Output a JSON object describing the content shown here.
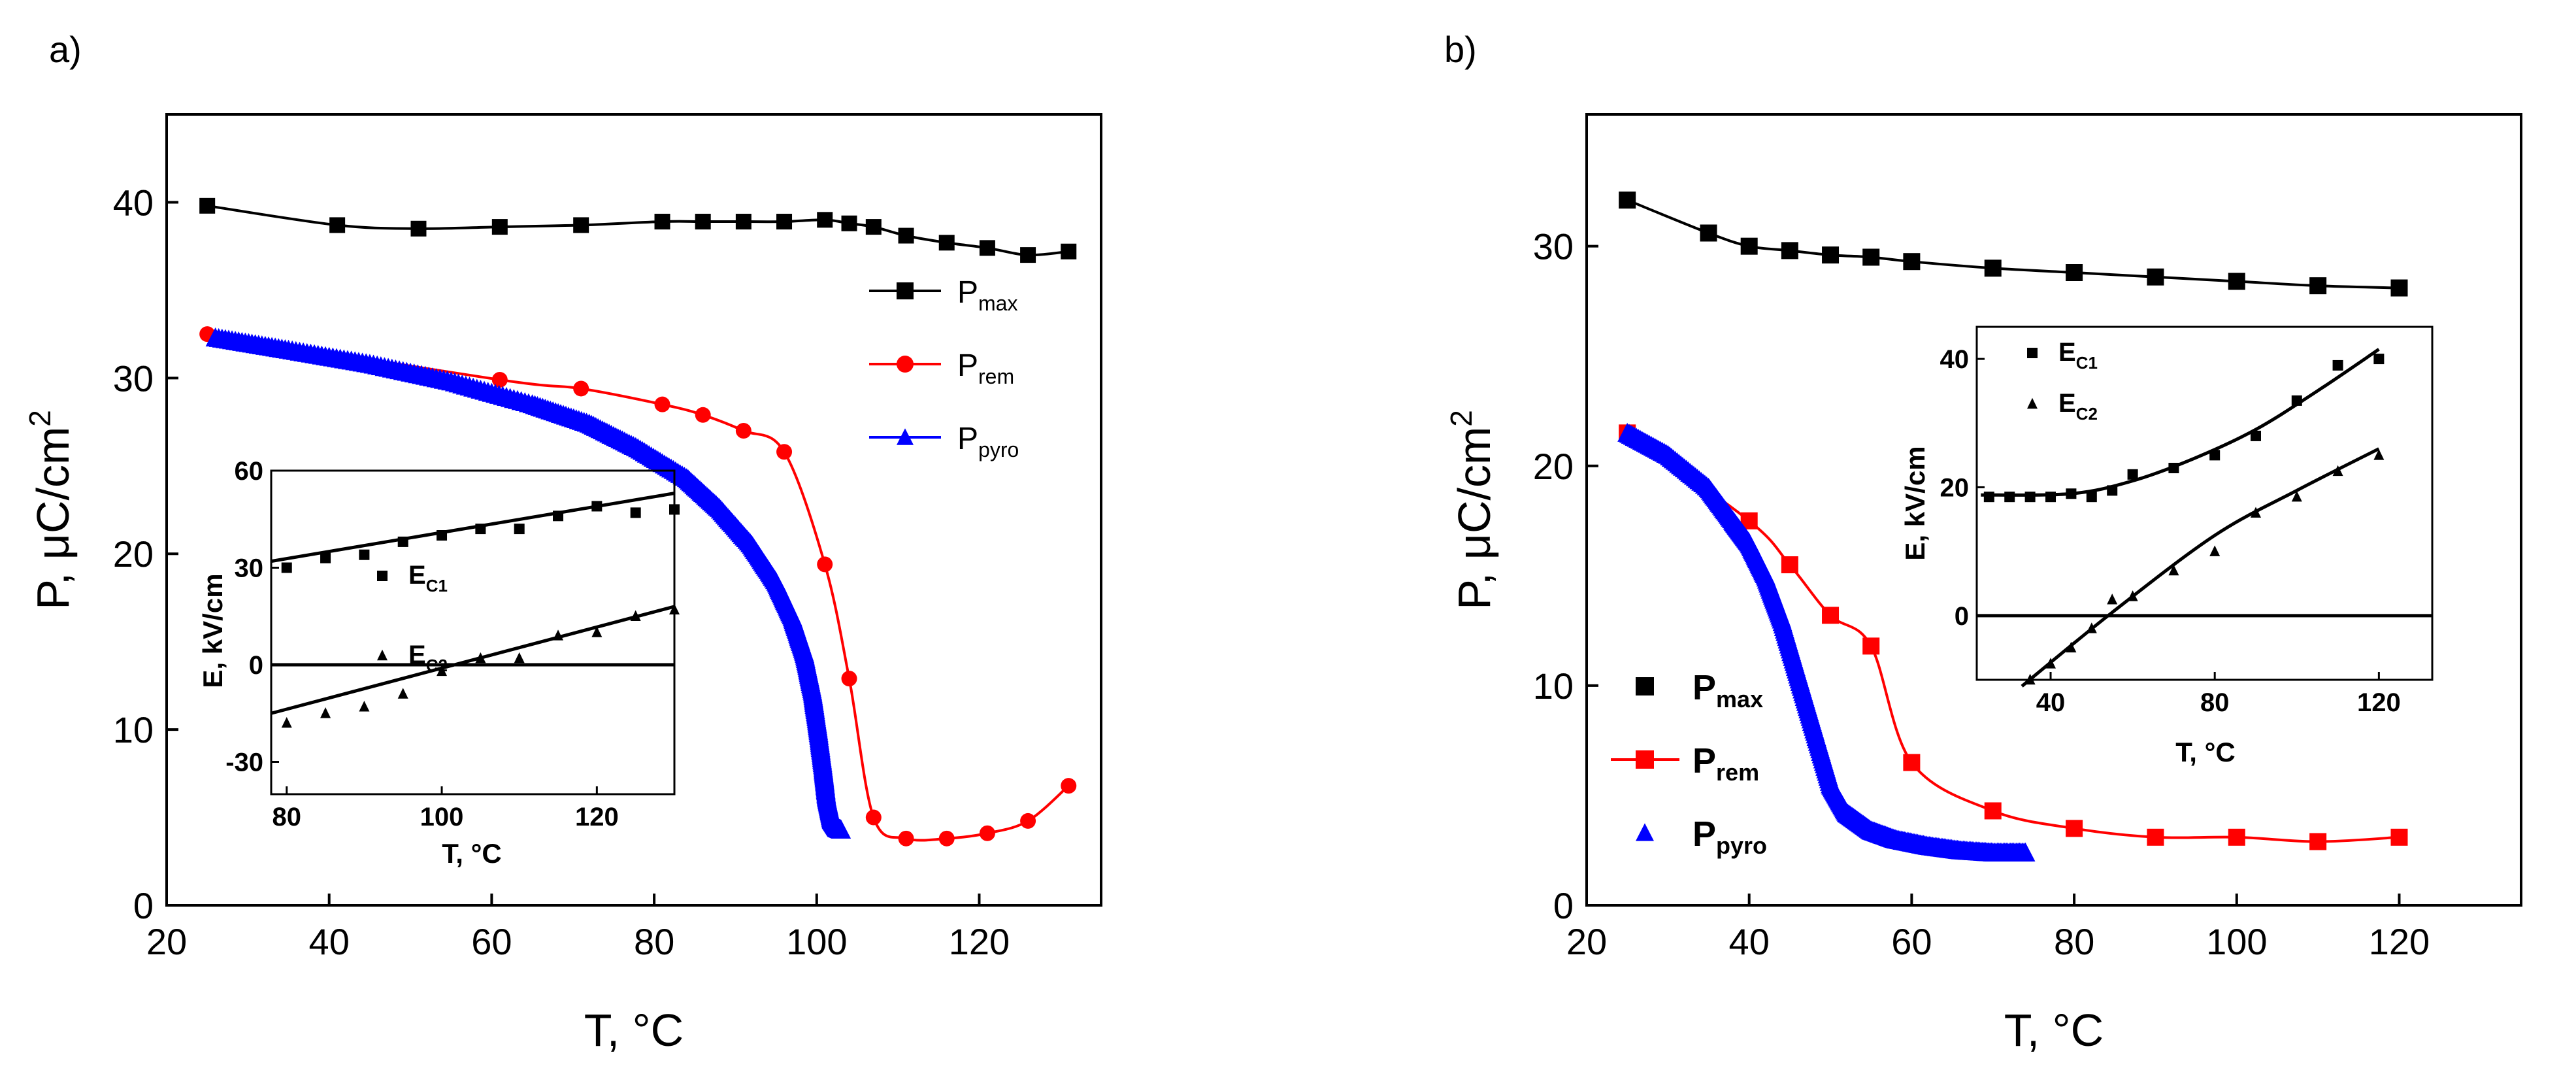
{
  "chart_data": [
    {
      "panel": "a)",
      "type": "line",
      "xlabel": "T, °C",
      "ylabel": "P, μC/cm",
      "ylabel_sup": "2",
      "xlim": [
        20,
        135
      ],
      "ylim": [
        0,
        45
      ],
      "xticks": [
        20,
        40,
        60,
        80,
        100,
        120
      ],
      "yticks": [
        0,
        10,
        20,
        30,
        40
      ],
      "legend_position": "right",
      "series": [
        {
          "name": "P",
          "sub": "max",
          "color": "#000000",
          "marker": "square",
          "line": true,
          "x": [
            25,
            41,
            51,
            61,
            71,
            81,
            86,
            91,
            96,
            101,
            104,
            107,
            111,
            116,
            121,
            126,
            131
          ],
          "y": [
            39.8,
            38.7,
            38.5,
            38.6,
            38.7,
            38.9,
            38.9,
            38.9,
            38.9,
            39.0,
            38.8,
            38.6,
            38.1,
            37.7,
            37.4,
            37.0,
            37.2
          ]
        },
        {
          "name": "P",
          "sub": "rem",
          "color": "#ff0000",
          "marker": "circle",
          "line": true,
          "x": [
            25,
            61,
            71,
            81,
            86,
            91,
            96,
            101,
            104,
            107,
            111,
            116,
            121,
            126,
            131
          ],
          "y": [
            32.5,
            29.9,
            29.4,
            28.5,
            27.9,
            27.0,
            25.8,
            19.4,
            12.9,
            5.0,
            3.8,
            3.8,
            4.1,
            4.8,
            6.8
          ]
        },
        {
          "name": "P",
          "sub": "pyro",
          "color": "#0000ff",
          "marker": "triangle",
          "line": false,
          "x": [
            26,
            35,
            45,
            55,
            65,
            72,
            78,
            84,
            88,
            92,
            95,
            97,
            98.5,
            99.5,
            100.2,
            100.8,
            101.2,
            101.8,
            102.5,
            103
          ],
          "y": [
            32.3,
            31.6,
            30.8,
            29.8,
            28.5,
            27.4,
            26.0,
            24.3,
            22.6,
            20.5,
            18.4,
            16.4,
            14.3,
            12.1,
            9.9,
            7.8,
            6.2,
            4.9,
            4.4,
            4.3
          ]
        }
      ],
      "inset": {
        "xlabel": "T, °C",
        "ylabel": "E, kV/cm",
        "xlim": [
          78,
          130
        ],
        "ylim": [
          -40,
          60
        ],
        "xticks": [
          80,
          100,
          120
        ],
        "yticks": [
          -30,
          0,
          30,
          60
        ],
        "zero_line": true,
        "series": [
          {
            "name": "E",
            "sub": "C1",
            "marker": "square",
            "x": [
              80,
              85,
              90,
              95,
              100,
              105,
              110,
              115,
              120,
              125,
              130
            ],
            "y": [
              30,
              33,
              34,
              38,
              40,
              42,
              42,
              46,
              49,
              47,
              48
            ],
            "fit": [
              [
                78,
                32
              ],
              [
                130,
                53
              ]
            ]
          },
          {
            "name": "E",
            "sub": "C2",
            "marker": "triangle",
            "x": [
              80,
              85,
              90,
              95,
              100,
              105,
              110,
              115,
              120,
              125,
              130
            ],
            "y": [
              -18,
              -15,
              -13,
              -9,
              -2,
              2,
              2,
              9,
              10,
              15,
              17
            ],
            "fit": [
              [
                78,
                -15
              ],
              [
                130,
                18
              ]
            ]
          }
        ]
      }
    },
    {
      "panel": "b)",
      "type": "line",
      "xlabel": "T, °C",
      "ylabel": "P, μC/cm",
      "ylabel_sup": "2",
      "xlim": [
        20,
        135
      ],
      "ylim": [
        0,
        36
      ],
      "xticks": [
        20,
        40,
        60,
        80,
        100,
        120
      ],
      "yticks": [
        0,
        10,
        20,
        30
      ],
      "legend_position": "left",
      "series": [
        {
          "name": "P",
          "sub": "max",
          "color": "#000000",
          "marker": "square",
          "line": true,
          "x": [
            25,
            35,
            40,
            45,
            50,
            55,
            60,
            70,
            80,
            90,
            100,
            110,
            120
          ],
          "y": [
            32.1,
            30.6,
            30.0,
            29.8,
            29.6,
            29.5,
            29.3,
            29.0,
            28.8,
            28.6,
            28.4,
            28.2,
            28.1
          ]
        },
        {
          "name": "P",
          "sub": "rem",
          "color": "#ff0000",
          "marker": "square",
          "line": true,
          "x": [
            25,
            40,
            45,
            50,
            55,
            60,
            70,
            80,
            90,
            100,
            110,
            120
          ],
          "y": [
            21.5,
            17.5,
            15.5,
            13.2,
            11.8,
            6.5,
            4.3,
            3.5,
            3.1,
            3.1,
            2.9,
            3.1
          ]
        },
        {
          "name": "P",
          "sub": "pyro",
          "color": "#0000ff",
          "marker": "triangle",
          "line": false,
          "x": [
            25,
            30,
            35,
            38,
            40,
            42,
            44,
            46,
            48,
            50,
            52,
            55,
            58,
            62,
            66,
            70,
            74
          ],
          "y": [
            21.5,
            20.5,
            19.0,
            17.5,
            16.5,
            15.0,
            13.0,
            10.5,
            8.0,
            5.5,
            4.2,
            3.4,
            3.0,
            2.7,
            2.5,
            2.4,
            2.4
          ]
        }
      ],
      "inset": {
        "xlabel": "T, °C",
        "ylabel": "E, kV/cm",
        "xlim": [
          22,
          133
        ],
        "ylim": [
          -10,
          45
        ],
        "xticks": [
          40,
          80,
          120
        ],
        "yticks": [
          0,
          20,
          40
        ],
        "zero_line": true,
        "series": [
          {
            "name": "E",
            "sub": "C1",
            "marker": "square",
            "x": [
              25,
              30,
              35,
              40,
              45,
              50,
              55,
              60,
              70,
              80,
              90,
              100,
              110,
              120
            ],
            "y": [
              18.5,
              18.5,
              18.5,
              18.5,
              19,
              18.5,
              19.5,
              22,
              23,
              25,
              28,
              33.5,
              39,
              40
            ],
            "fit": [
              [
                23,
                18.8
              ],
              [
                45,
                19.0
              ],
              [
                60,
                21.0
              ],
              [
                75,
                24.5
              ],
              [
                90,
                29
              ],
              [
                105,
                35
              ],
              [
                120,
                41.5
              ]
            ]
          },
          {
            "name": "E",
            "sub": "C2",
            "marker": "triangle",
            "x": [
              35,
              40,
              45,
              50,
              55,
              60,
              70,
              80,
              90,
              100,
              110,
              120
            ],
            "y": [
              -10,
              -7.5,
              -5,
              -2,
              2.5,
              3,
              7,
              10,
              16,
              18.5,
              22.5,
              25
            ],
            "fit": [
              [
                33,
                -11
              ],
              [
                55,
                0.5
              ],
              [
                80,
                12.5
              ],
              [
                100,
                19.5
              ],
              [
                120,
                26
              ]
            ]
          }
        ]
      }
    }
  ]
}
